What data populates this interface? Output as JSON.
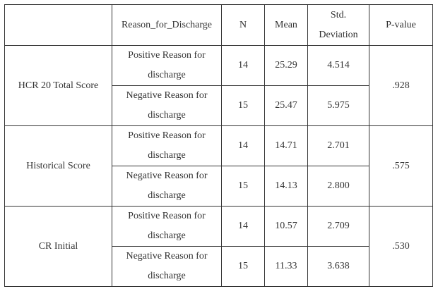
{
  "table": {
    "headers": {
      "variable": "",
      "reason": "Reason_for_Discharge",
      "n": "N",
      "mean": "Mean",
      "sd": "Std. Deviation",
      "p": "P-value"
    },
    "groups": [
      {
        "label": "HCR 20 Total Score",
        "p_value": ".928",
        "rows": [
          {
            "reason": "Positive Reason for discharge",
            "n": "14",
            "mean": "25.29",
            "sd": "4.514"
          },
          {
            "reason": "Negative Reason for discharge",
            "n": "15",
            "mean": "25.47",
            "sd": "5.975"
          }
        ]
      },
      {
        "label": "Historical Score",
        "p_value": ".575",
        "rows": [
          {
            "reason": "Positive Reason for discharge",
            "n": "14",
            "mean": "14.71",
            "sd": "2.701"
          },
          {
            "reason": "Negative Reason for discharge",
            "n": "15",
            "mean": "14.13",
            "sd": "2.800"
          }
        ]
      },
      {
        "label": "CR Initial",
        "p_value": ".530",
        "rows": [
          {
            "reason": "Positive Reason for discharge",
            "n": "14",
            "mean": "10.57",
            "sd": "2.709"
          },
          {
            "reason": "Negative Reason for discharge",
            "n": "15",
            "mean": "11.33",
            "sd": "3.638"
          }
        ]
      }
    ]
  }
}
